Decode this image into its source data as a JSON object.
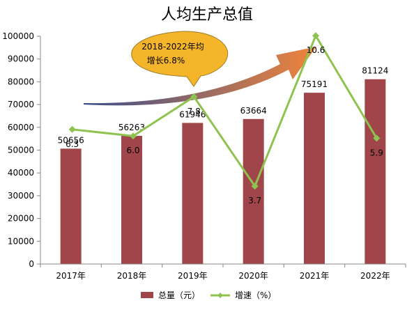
{
  "chart_data": {
    "type": "bar",
    "title": "人均生产总值",
    "categories": [
      "2017年",
      "2018年",
      "2019年",
      "2020年",
      "2021年",
      "2022年"
    ],
    "series": [
      {
        "name": "总量（元）",
        "kind": "bar",
        "color": "#a0464a",
        "values": [
          50656,
          56263,
          61946,
          63664,
          75191,
          81124
        ],
        "labels": [
          "50656",
          "56263",
          "61946",
          "63664",
          "75191",
          "81124"
        ]
      },
      {
        "name": "增速（%）",
        "kind": "line",
        "color": "#8fc350",
        "values": [
          6.3,
          6.0,
          7.8,
          3.7,
          10.6,
          5.9
        ],
        "labels": [
          "6.3",
          "6.0",
          "7.8",
          "3.7",
          "10.6",
          "5.9"
        ]
      }
    ],
    "ylim": [
      0,
      100000
    ],
    "yticks": [
      "0",
      "10000",
      "20000",
      "30000",
      "40000",
      "50000",
      "60000",
      "70000",
      "80000",
      "90000",
      "100000"
    ],
    "legend_position": "bottom",
    "callout": {
      "line1": "2018-2022年均",
      "line2": "增长6.8%",
      "fill": "#f5b52a"
    },
    "arrow_gradient": [
      "#3a4f8c",
      "#f0843c"
    ]
  }
}
